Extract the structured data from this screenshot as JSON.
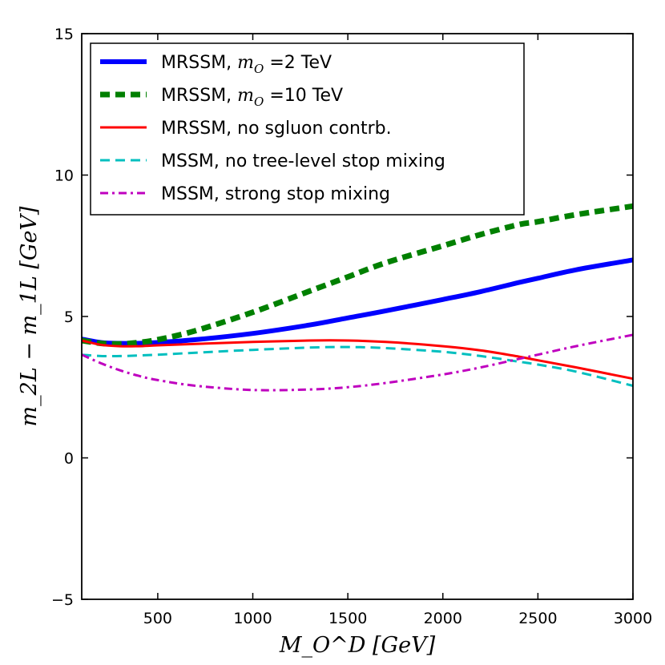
{
  "chart_data": {
    "type": "line",
    "xlabel": "M_O^D  [GeV]",
    "ylabel": "m_2L − m_1L  [GeV]",
    "xlim": [
      100,
      3000
    ],
    "ylim": [
      -5,
      15
    ],
    "xticks": [
      500,
      1000,
      1500,
      2000,
      2500,
      3000
    ],
    "yticks": [
      -5,
      0,
      5,
      10,
      15
    ],
    "ytick_labels": [
      "−5",
      "0",
      "5",
      "10",
      "15"
    ],
    "grid": false,
    "legend_position": "top-left",
    "x": [
      100,
      200,
      300,
      400,
      500,
      700,
      1000,
      1300,
      1500,
      1700,
      2000,
      2200,
      2400,
      2500,
      2700,
      3000
    ],
    "series": [
      {
        "name": "MRSSM, m_O =2 TeV",
        "legend_prefix": "MRSSM, ",
        "legend_math": "m",
        "legend_sub": "O",
        "legend_suffix": " =2 TeV",
        "color": "#0000ff",
        "style": "solid-thick",
        "values": [
          4.2,
          4.08,
          4.05,
          4.05,
          4.08,
          4.18,
          4.4,
          4.7,
          4.95,
          5.2,
          5.6,
          5.88,
          6.2,
          6.35,
          6.65,
          7.0
        ]
      },
      {
        "name": "MRSSM, m_O =10 TeV",
        "legend_prefix": "MRSSM, ",
        "legend_math": "m",
        "legend_sub": "O",
        "legend_suffix": " =10 TeV",
        "color": "#008000",
        "style": "dashed-thick",
        "values": [
          4.15,
          4.05,
          4.03,
          4.08,
          4.18,
          4.5,
          5.15,
          5.9,
          6.4,
          6.9,
          7.5,
          7.9,
          8.25,
          8.35,
          8.6,
          8.9
        ]
      },
      {
        "name": "MRSSM, no sgluon contrb.",
        "color": "#ff0000",
        "style": "solid",
        "values": [
          4.15,
          4.0,
          3.95,
          3.95,
          3.98,
          4.03,
          4.1,
          4.15,
          4.15,
          4.1,
          3.95,
          3.8,
          3.58,
          3.45,
          3.2,
          2.8
        ]
      },
      {
        "name": "MSSM, no tree-level stop mixing",
        "color": "#00bfbf",
        "style": "dashed",
        "values": [
          3.65,
          3.6,
          3.6,
          3.62,
          3.65,
          3.72,
          3.82,
          3.9,
          3.92,
          3.88,
          3.75,
          3.6,
          3.4,
          3.3,
          3.05,
          2.55
        ]
      },
      {
        "name": "MSSM, strong stop mixing",
        "color": "#bf00bf",
        "style": "dashdot",
        "values": [
          3.65,
          3.35,
          3.1,
          2.9,
          2.75,
          2.55,
          2.4,
          2.42,
          2.5,
          2.65,
          2.95,
          3.2,
          3.5,
          3.65,
          3.95,
          4.35
        ]
      }
    ]
  }
}
